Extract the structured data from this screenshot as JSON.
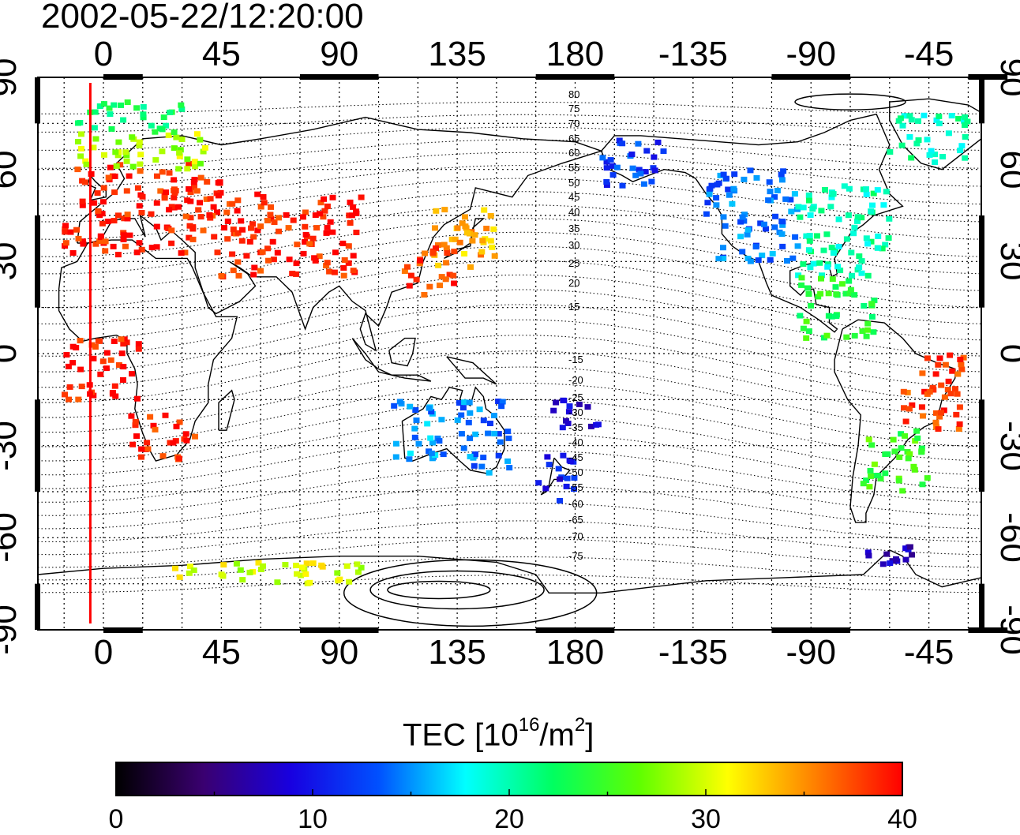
{
  "title": "2002-05-22/12:20:00",
  "top_axis_ticks": [
    "0",
    "45",
    "90",
    "135",
    "180",
    "-135",
    "-90",
    "-45"
  ],
  "bottom_axis_ticks": [
    "0",
    "45",
    "90",
    "135",
    "180",
    "-135",
    "-90",
    "-45"
  ],
  "left_axis_ticks": [
    "90",
    "60",
    "30",
    "0",
    "-30",
    "-60",
    "-90"
  ],
  "right_axis_ticks": [
    "90",
    "60",
    "30",
    "0",
    "-30",
    "-60",
    "-90"
  ],
  "contour_labels": [
    "80",
    "75",
    "70",
    "65",
    "60",
    "55",
    "50",
    "45",
    "40",
    "35",
    "30",
    "25",
    "20",
    "15",
    "-15",
    "-20",
    "-25",
    "-30",
    "-35",
    "-40",
    "-45",
    "-50",
    "-55",
    "-60",
    "-65",
    "-70",
    "-75"
  ],
  "colorbar": {
    "label_main": "TEC  [10",
    "label_sup1": "16",
    "label_mid": "/m",
    "label_sup2": "2",
    "label_end": "]",
    "ticks": [
      "0",
      "10",
      "20",
      "30",
      "40"
    ],
    "min": 0,
    "max": 40,
    "colormap": [
      "#000000",
      "#3a0070",
      "#1800e0",
      "#0050ff",
      "#00ffff",
      "#00ff60",
      "#60ff00",
      "#ffff00",
      "#ff8000",
      "#ff0000"
    ]
  },
  "map": {
    "lon_range": [
      -25,
      335
    ],
    "lat_range": [
      -90,
      90
    ],
    "gridline_style": "dotted",
    "terminator_longitude": -5,
    "terminator_color": "#ff0000",
    "tec_regions": [
      {
        "name": "Europe",
        "lon": [
          -15,
          45
        ],
        "lat": [
          32,
          62
        ],
        "tec": 39
      },
      {
        "name": "Scandinavia",
        "lon": [
          -10,
          40
        ],
        "lat": [
          60,
          72
        ],
        "tec": 29
      },
      {
        "name": "Arctic Europe",
        "lon": [
          -10,
          30
        ],
        "lat": [
          72,
          82
        ],
        "tec": 22
      },
      {
        "name": "Middle East/Asia",
        "lon": [
          45,
          100
        ],
        "lat": [
          25,
          52
        ],
        "tec": 39
      },
      {
        "name": "Japan",
        "lon": [
          125,
          150
        ],
        "lat": [
          28,
          48
        ],
        "tec": 34
      },
      {
        "name": "China coast",
        "lon": [
          115,
          135
        ],
        "lat": [
          18,
          35
        ],
        "tec": 38
      },
      {
        "name": "Alaska",
        "lon": [
          190,
          215
        ],
        "lat": [
          54,
          70
        ],
        "tec": 12
      },
      {
        "name": "North America west",
        "lon": [
          230,
          265
        ],
        "lat": [
          30,
          60
        ],
        "tec": 14
      },
      {
        "name": "North America east",
        "lon": [
          265,
          300
        ],
        "lat": [
          25,
          55
        ],
        "tec": 20
      },
      {
        "name": "Central America",
        "lon": [
          265,
          295
        ],
        "lat": [
          5,
          25
        ],
        "tec": 24
      },
      {
        "name": "Brazil",
        "lon": [
          305,
          330
        ],
        "lat": [
          -25,
          0
        ],
        "tec": 38
      },
      {
        "name": "Argentina",
        "lon": [
          290,
          315
        ],
        "lat": [
          -45,
          -25
        ],
        "tec": 25
      },
      {
        "name": "Southern Africa",
        "lon": [
          10,
          35
        ],
        "lat": [
          -35,
          -20
        ],
        "tec": 39
      },
      {
        "name": "West Africa",
        "lon": [
          -15,
          15
        ],
        "lat": [
          -15,
          5
        ],
        "tec": 39
      },
      {
        "name": "Australia west",
        "lon": [
          110,
          130
        ],
        "lat": [
          -35,
          -15
        ],
        "tec": 15
      },
      {
        "name": "Australia east",
        "lon": [
          135,
          155
        ],
        "lat": [
          -40,
          -15
        ],
        "tec": 14
      },
      {
        "name": "New Zealand",
        "lon": [
          165,
          180
        ],
        "lat": [
          -48,
          -33
        ],
        "tec": 10
      },
      {
        "name": "Pacific islands",
        "lon": [
          170,
          190
        ],
        "lat": [
          -25,
          -15
        ],
        "tec": 9
      },
      {
        "name": "Antarctic Peninsula",
        "lon": [
          290,
          310
        ],
        "lat": [
          -72,
          -62
        ],
        "tec": 8
      },
      {
        "name": "Antarctica coast",
        "lon": [
          25,
          100
        ],
        "lat": [
          -75,
          -68
        ],
        "tec": 30
      },
      {
        "name": "Greenland",
        "lon": [
          300,
          330
        ],
        "lat": [
          62,
          78
        ],
        "tec": 20
      }
    ]
  }
}
